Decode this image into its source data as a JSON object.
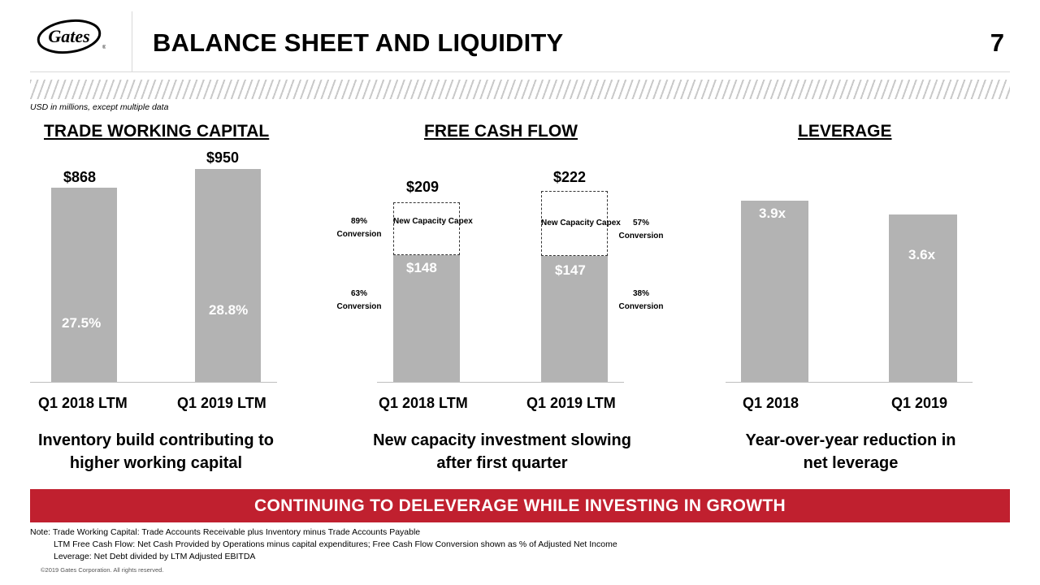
{
  "header": {
    "title": "BALANCE SHEET AND LIQUIDITY",
    "page_number": "7",
    "logo_text": "Gates",
    "units_note": "USD in millions, except multiple data"
  },
  "sections": {
    "twc_title": "TRADE WORKING CAPITAL",
    "fcf_title": "FREE CASH FLOW",
    "lev_title": "LEVERAGE"
  },
  "captions": {
    "twc_line1": "Inventory build contributing to",
    "twc_line2": "higher working capital",
    "fcf_line1": "New capacity investment slowing",
    "fcf_line2": "after first quarter",
    "lev_line1": "Year-over-year reduction in",
    "lev_line2": "net leverage"
  },
  "banner": "CONTINUING TO DELEVERAGE WHILE INVESTING IN GROWTH",
  "notes": {
    "line1": "Note: Trade Working Capital:  Trade Accounts Receivable plus Inventory minus Trade Accounts Payable",
    "line2": "LTM Free Cash Flow:  Net Cash Provided by Operations minus capital expenditures; Free Cash Flow Conversion shown as % of Adjusted Net Income",
    "line3": "Leverage:  Net Debt divided by LTM Adjusted EBITDA",
    "copyright": "©2019 Gates Corporation. All rights reserved."
  },
  "colors": {
    "bar": "#b3b3b3",
    "banner": "#c0202f"
  },
  "chart_data": [
    {
      "type": "bar",
      "title": "TRADE WORKING CAPITAL",
      "categories": [
        "Q1 2018 LTM",
        "Q1 2019 LTM"
      ],
      "values": [
        868,
        950
      ],
      "value_labels": [
        "$868",
        "$950"
      ],
      "inner_labels": [
        "27.5%",
        "28.8%"
      ],
      "ylim": [
        0,
        950
      ]
    },
    {
      "type": "bar",
      "title": "FREE CASH FLOW",
      "categories": [
        "Q1 2018 LTM",
        "Q1 2019 LTM"
      ],
      "series": [
        {
          "values": [
            148,
            147
          ],
          "value_labels": [
            "$148",
            "$147"
          ],
          "conversion": [
            "63%",
            "38%"
          ]
        },
        {
          "name": "New Capacity Capex",
          "values": [
            61,
            75
          ],
          "conversion": [
            "89%",
            "57%"
          ]
        }
      ],
      "totals": [
        209,
        222
      ],
      "total_labels": [
        "$209",
        "$222"
      ],
      "annotation": "New Capacity Capex",
      "conversion_label": "Conversion",
      "ylim": [
        0,
        222
      ]
    },
    {
      "type": "bar",
      "title": "LEVERAGE",
      "categories": [
        "Q1 2018",
        "Q1 2019"
      ],
      "values": [
        3.9,
        3.6
      ],
      "value_labels": [
        "3.9x",
        "3.6x"
      ]
    }
  ]
}
